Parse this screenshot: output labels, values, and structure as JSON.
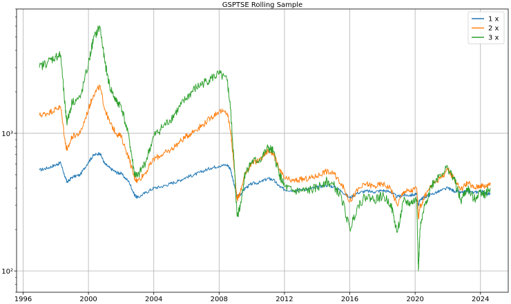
{
  "chart_data": {
    "type": "line",
    "title": "GSPTSE Rolling Sample",
    "xlabel": "",
    "ylabel": "",
    "yscale": "log",
    "xlim": [
      1995.6,
      2025.7
    ],
    "ylim": [
      70,
      8000
    ],
    "grid": true,
    "legend_position": "top-right",
    "x_ticks": [
      "1996",
      "2000",
      "2004",
      "2008",
      "2012",
      "2016",
      "2020",
      "2024"
    ],
    "y_ticks": [
      {
        "value": 100,
        "label": "10²"
      },
      {
        "value": 1000,
        "label": "10³"
      }
    ],
    "x": [
      1997.0,
      1997.5,
      1998.0,
      1998.3,
      1998.6,
      1998.7,
      1999.0,
      1999.5,
      2000.0,
      2000.3,
      2000.7,
      2001.0,
      2001.3,
      2001.7,
      2002.0,
      2002.5,
      2002.8,
      2003.0,
      2003.5,
      2004.0,
      2004.5,
      2005.0,
      2005.5,
      2006.0,
      2006.5,
      2007.0,
      2007.5,
      2008.0,
      2008.5,
      2008.7,
      2008.9,
      2009.1,
      2009.3,
      2009.6,
      2010.0,
      2010.5,
      2011.0,
      2011.3,
      2011.7,
      2012.0,
      2012.5,
      2013.0,
      2013.5,
      2014.0,
      2014.5,
      2015.0,
      2015.5,
      2016.0,
      2016.5,
      2017.0,
      2017.5,
      2018.0,
      2018.5,
      2018.9,
      2019.3,
      2019.7,
      2020.1,
      2020.2,
      2020.3,
      2020.6,
      2021.0,
      2021.5,
      2022.0,
      2022.4,
      2022.8,
      2023.2,
      2023.6,
      2024.0,
      2024.3,
      2024.6
    ],
    "series": [
      {
        "name": "1 x",
        "color": "#1f77b4",
        "values": [
          540,
          560,
          590,
          610,
          470,
          440,
          480,
          500,
          620,
          690,
          720,
          600,
          560,
          520,
          510,
          440,
          360,
          340,
          370,
          400,
          410,
          430,
          450,
          480,
          500,
          530,
          560,
          580,
          590,
          550,
          430,
          350,
          360,
          400,
          430,
          440,
          470,
          460,
          410,
          390,
          385,
          390,
          395,
          405,
          420,
          410,
          380,
          340,
          370,
          380,
          375,
          385,
          375,
          345,
          355,
          355,
          360,
          300,
          330,
          345,
          360,
          380,
          400,
          380,
          370,
          380,
          370,
          380,
          370,
          360
        ]
      },
      {
        "name": "2 x",
        "color": "#ff7f0e",
        "values": [
          1350,
          1400,
          1500,
          1550,
          830,
          750,
          950,
          1000,
          1500,
          1900,
          2200,
          1500,
          1200,
          1000,
          950,
          650,
          480,
          450,
          520,
          650,
          700,
          750,
          850,
          950,
          1050,
          1150,
          1300,
          1450,
          1400,
          1050,
          600,
          330,
          370,
          520,
          600,
          640,
          750,
          720,
          540,
          470,
          450,
          460,
          470,
          490,
          530,
          510,
          430,
          320,
          390,
          430,
          410,
          430,
          400,
          300,
          380,
          380,
          400,
          240,
          290,
          350,
          420,
          470,
          540,
          470,
          390,
          440,
          400,
          420,
          410,
          440
        ]
      },
      {
        "name": "3 x",
        "color": "#2ca02c",
        "values": [
          3000,
          3300,
          3600,
          3700,
          1400,
          1200,
          1700,
          1800,
          3200,
          4800,
          6000,
          3300,
          2200,
          1700,
          1600,
          900,
          520,
          480,
          620,
          950,
          1100,
          1250,
          1500,
          1800,
          2100,
          2300,
          2500,
          2700,
          2400,
          1500,
          650,
          250,
          300,
          520,
          620,
          640,
          780,
          740,
          500,
          410,
          380,
          380,
          385,
          400,
          450,
          420,
          340,
          200,
          300,
          350,
          330,
          350,
          310,
          190,
          320,
          310,
          330,
          100,
          200,
          300,
          420,
          500,
          560,
          460,
          320,
          400,
          330,
          380,
          360,
          400
        ]
      }
    ]
  }
}
